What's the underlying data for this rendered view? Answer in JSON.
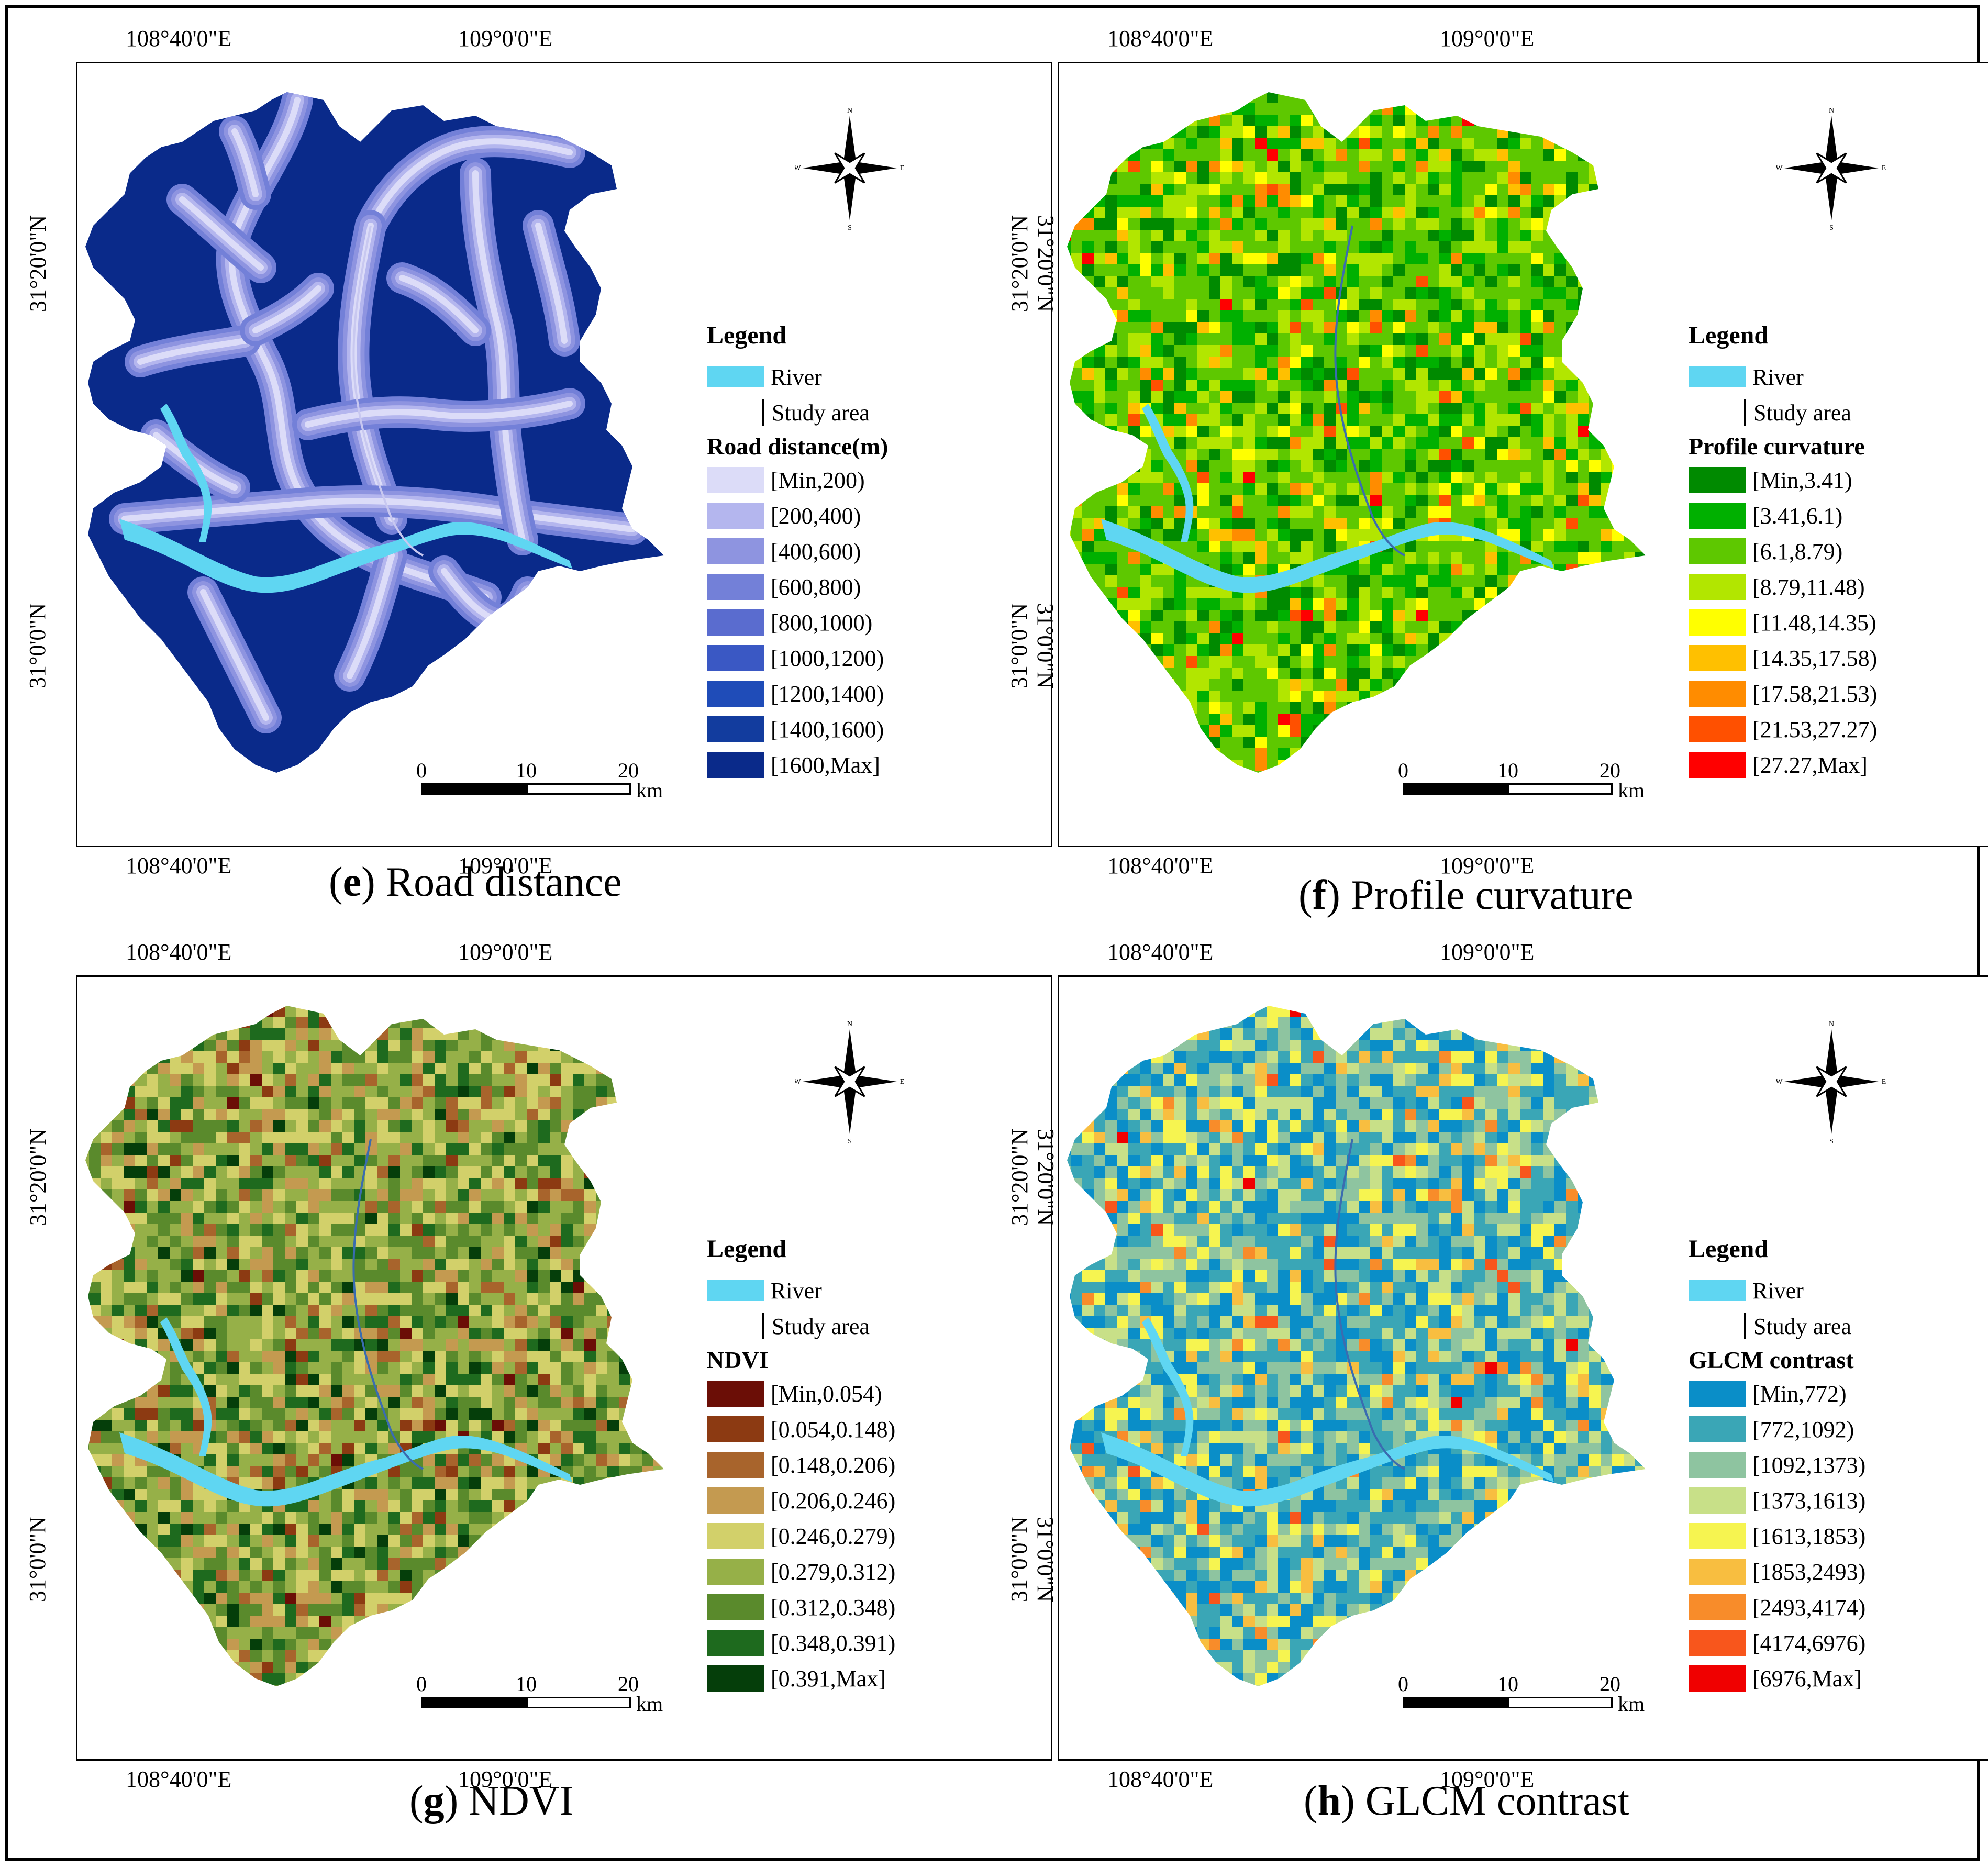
{
  "colors": {
    "river": "#5fd6f2",
    "road_background": "#0a2a8a"
  },
  "panels": [
    {
      "id": "e",
      "coords": {
        "top_lon_1": "108°40'0\"E",
        "top_lon_2": "109°0'0\"E",
        "bottom_lon_1": "108°40'0\"E",
        "bottom_lon_2": "109°0'0\"E",
        "left_lat_1": "31°20'0\"N",
        "left_lat_2": "31°0'0\"N",
        "right_lat_1": "31°20'0\"N",
        "right_lat_2": "31°0'0\"N"
      },
      "legend": {
        "title": "Legend",
        "river": "River",
        "study_area": "Study area",
        "section": "Road distance(m)",
        "classes": [
          {
            "label": "[Min,200)",
            "color": "#dcdcf8"
          },
          {
            "label": "[200,400)",
            "color": "#b4b6ee"
          },
          {
            "label": "[400,600)",
            "color": "#8e94e0"
          },
          {
            "label": "[600,800)",
            "color": "#7380d8"
          },
          {
            "label": "[800,1000)",
            "color": "#5a6ccf"
          },
          {
            "label": "[1000,1200)",
            "color": "#3a58c4"
          },
          {
            "label": "[1200,1400)",
            "color": "#1f4cb8"
          },
          {
            "label": "[1400,1600)",
            "color": "#123c9e"
          },
          {
            "label": "[1600,Max]",
            "color": "#0a2a8a"
          }
        ]
      },
      "scale": {
        "s0": "0",
        "s10": "10",
        "s20": "20",
        "unit": "km"
      },
      "caption": {
        "letter": "e",
        "text": " Road distance"
      },
      "compass": {
        "n": "N",
        "w": "W",
        "e": "E",
        "s": "S"
      }
    },
    {
      "id": "f",
      "coords": {
        "top_lon_1": "108°40'0\"E",
        "top_lon_2": "109°0'0\"E",
        "bottom_lon_1": "108°40'0\"E",
        "bottom_lon_2": "109°0'0\"E",
        "left_lat_1": "31°20'0\"N",
        "left_lat_2": "31°0'0\"N",
        "right_lat_1": "31°20'0\"N",
        "right_lat_2": "31°0'0\"N"
      },
      "legend": {
        "title": "Legend",
        "river": "River",
        "study_area": "Study area",
        "section": "Profile curvature",
        "classes": [
          {
            "label": "[Min,3.41)",
            "color": "#008a00"
          },
          {
            "label": "[3.41,6.1)",
            "color": "#00b000"
          },
          {
            "label": "[6.1,8.79)",
            "color": "#5ec800"
          },
          {
            "label": "[8.79,11.48)",
            "color": "#b2e600"
          },
          {
            "label": "[11.48,14.35)",
            "color": "#ffff00"
          },
          {
            "label": "[14.35,17.58)",
            "color": "#ffc000"
          },
          {
            "label": "[17.58,21.53)",
            "color": "#ff8c00"
          },
          {
            "label": "[21.53,27.27)",
            "color": "#ff5000"
          },
          {
            "label": "[27.27,Max]",
            "color": "#ff0000"
          }
        ]
      },
      "scale": {
        "s0": "0",
        "s10": "10",
        "s20": "20",
        "unit": "km"
      },
      "caption": {
        "letter": "f",
        "text": " Profile curvature"
      },
      "compass": {
        "n": "N",
        "w": "W",
        "e": "E",
        "s": "S"
      }
    },
    {
      "id": "g",
      "coords": {
        "top_lon_1": "108°40'0\"E",
        "top_lon_2": "109°0'0\"E",
        "bottom_lon_1": "108°40'0\"E",
        "bottom_lon_2": "109°0'0\"E",
        "left_lat_1": "31°20'0\"N",
        "left_lat_2": "31°0'0\"N",
        "right_lat_1": "31°20'0\"N",
        "right_lat_2": "31°0'0\"N"
      },
      "legend": {
        "title": "Legend",
        "river": "River",
        "study_area": "Study area",
        "section": "NDVI",
        "classes": [
          {
            "label": "[Min,0.054)",
            "color": "#6b0e06"
          },
          {
            "label": "[0.054,0.148)",
            "color": "#8c3a12"
          },
          {
            "label": "[0.148,0.206)",
            "color": "#a8642c"
          },
          {
            "label": "[0.206,0.246)",
            "color": "#c49a50"
          },
          {
            "label": "[0.246,0.279)",
            "color": "#d2d06a"
          },
          {
            "label": "[0.279,0.312)",
            "color": "#96b048"
          },
          {
            "label": "[0.312,0.348)",
            "color": "#5a8a2c"
          },
          {
            "label": "[0.348,0.391)",
            "color": "#1e6a1e"
          },
          {
            "label": "[0.391,Max]",
            "color": "#053e0a"
          }
        ]
      },
      "scale": {
        "s0": "0",
        "s10": "10",
        "s20": "20",
        "unit": "km"
      },
      "caption": {
        "letter": "g",
        "text": " NDVI"
      },
      "compass": {
        "n": "N",
        "w": "W",
        "e": "E",
        "s": "S"
      }
    },
    {
      "id": "h",
      "coords": {
        "top_lon_1": "108°40'0\"E",
        "top_lon_2": "109°0'0\"E",
        "bottom_lon_1": "108°40'0\"E",
        "bottom_lon_2": "109°0'0\"E",
        "left_lat_1": "31°20'0\"N",
        "left_lat_2": "31°0'0\"N",
        "right_lat_1": "31°20'0\"N",
        "right_lat_2": "31°0'0\"N"
      },
      "legend": {
        "title": "Legend",
        "river": "River",
        "study_area": "Study area",
        "section": "GLCM contrast",
        "classes": [
          {
            "label": "[Min,772)",
            "color": "#0a8ec8"
          },
          {
            "label": "[772,1092)",
            "color": "#3aa6b6"
          },
          {
            "label": "[1092,1373)",
            "color": "#8ec4a0"
          },
          {
            "label": "[1373,1613)",
            "color": "#c8e088"
          },
          {
            "label": "[1613,1853)",
            "color": "#f6f450"
          },
          {
            "label": "[1853,2493)",
            "color": "#f8be40"
          },
          {
            "label": "[2493,4174)",
            "color": "#f88c2a"
          },
          {
            "label": "[4174,6976)",
            "color": "#f8561c"
          },
          {
            "label": "[6976,Max]",
            "color": "#f00000"
          }
        ]
      },
      "scale": {
        "s0": "0",
        "s10": "10",
        "s20": "20",
        "unit": "km"
      },
      "caption": {
        "letter": "h",
        "text": " GLCM contrast"
      },
      "compass": {
        "n": "N",
        "w": "W",
        "e": "E",
        "s": "S"
      }
    }
  ]
}
